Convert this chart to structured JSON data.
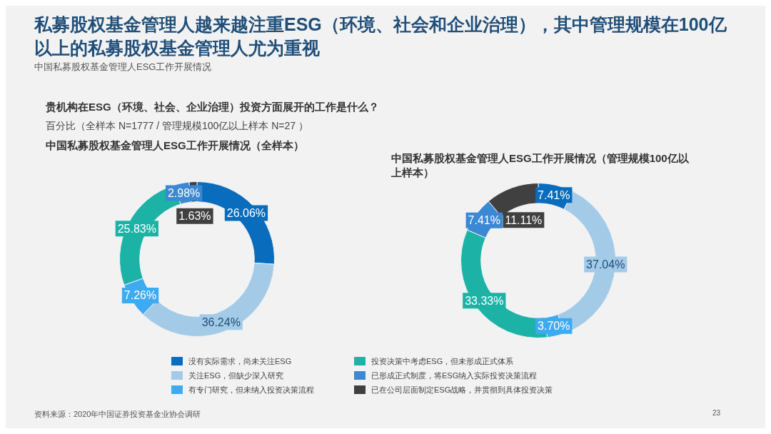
{
  "chart_data": [
    {
      "type": "other",
      "title": "私募股权基金管理人越来越注重ESG（环境、社会和企业治理），其中管理规模在100亿以上的私募股权基金管理人尤为重视",
      "subtitle": "中国私募股权基金管理人ESG工作开展情况",
      "annotations": [
        "贵机构在ESG（环境、社会、企业治理）投资方面展开的工作是什么？",
        "百分比（全样本 N=1777 / 管理规模100亿以上样本  N=27 ）",
        "资料来源：2020年中国证券投资基金业协会调研",
        "23"
      ]
    },
    {
      "type": "donut",
      "title": "中国私募股权基金管理人ESG工作开展情况（全样本）",
      "categories": [
        "没有实际需求，尚未关注ESG",
        "关注ESG，但缺少深入研究",
        "有专门研究，但未纳入投资决策流程",
        "投资决策中考虑ESG，但未形成正式体系",
        "已形成正式制度，将ESG纳入实际投资决策流程",
        "已在公司层面制定ESG战略，并贯彻到具体投资决策"
      ],
      "values": [
        26.06,
        36.24,
        7.26,
        25.83,
        2.98,
        1.63
      ],
      "colors": [
        "#0a6cbc",
        "#a3cbe8",
        "#3daaf2",
        "#1cb3a6",
        "#3b88d4",
        "#404040"
      ],
      "value_labels": [
        "26.06%",
        "36.24%",
        "7.26%",
        "25.83%",
        "2.98%",
        "1.63%"
      ],
      "legend": "bottom"
    },
    {
      "type": "donut",
      "title": "中国私募股权基金管理人ESG工作开展情况（管理规模100亿以上样本）",
      "categories": [
        null,
        null,
        null,
        null,
        null,
        null
      ],
      "values": [
        7.41,
        37.04,
        3.7,
        33.33,
        7.41,
        11.11
      ],
      "colors": [
        "#0a6cbc",
        "#a3cbe8",
        "#3daaf2",
        "#1cb3a6",
        "#3b88d4",
        "#404040"
      ],
      "value_labels": [
        "7.41%",
        "37.04%",
        "3.70%",
        "33.33%",
        "7.41%",
        "11.11%"
      ]
    }
  ]
}
